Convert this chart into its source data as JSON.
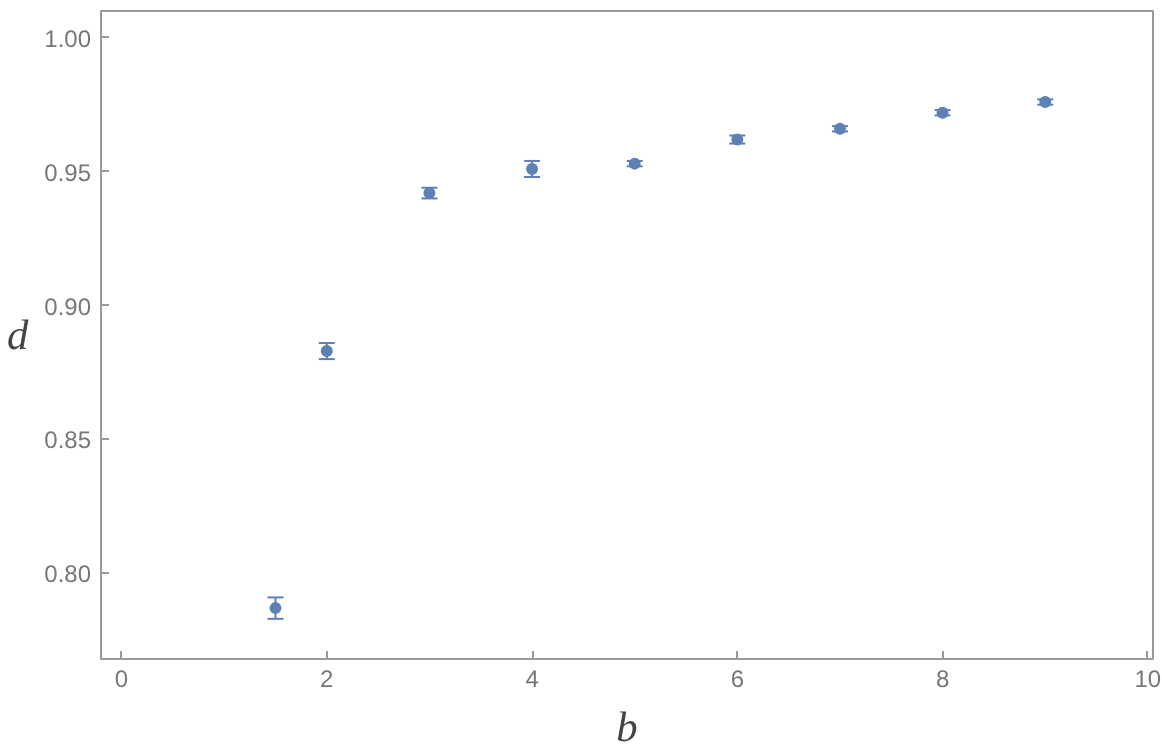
{
  "chart_data": {
    "type": "scatter",
    "xlabel": "b",
    "ylabel": "d",
    "x": [
      1.5,
      2,
      3,
      4,
      5,
      6,
      7,
      8,
      9
    ],
    "series": [
      {
        "color": "#5e81b5",
        "values": [
          0.787,
          0.883,
          0.942,
          0.951,
          0.953,
          0.962,
          0.966,
          0.972,
          0.976
        ],
        "errors": [
          0.004,
          0.003,
          0.002,
          0.003,
          0.001,
          0.0015,
          0.001,
          0.001,
          0.001
        ]
      }
    ],
    "xlim": [
      -0.2,
      10.05
    ],
    "ylim": [
      0.768,
      1.01
    ],
    "xticks": [
      0,
      2,
      4,
      6,
      8,
      10
    ],
    "yticks": [
      {
        "value": 0.8,
        "label": "0.80"
      },
      {
        "value": 0.85,
        "label": "0.85"
      },
      {
        "value": 0.9,
        "label": "0.90"
      },
      {
        "value": 0.95,
        "label": "0.95"
      },
      {
        "value": 1.0,
        "label": "1.00"
      }
    ],
    "grid": false,
    "marker": "circle"
  }
}
